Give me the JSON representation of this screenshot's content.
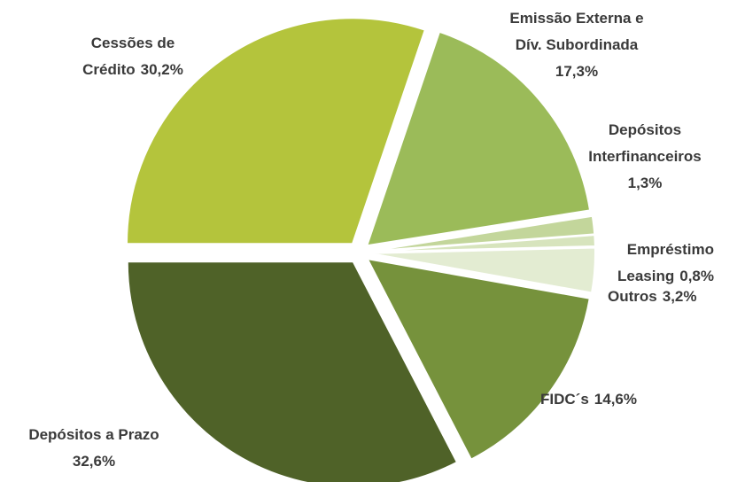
{
  "chart_data": {
    "type": "pie",
    "categories": [
      [
        "Cessões de",
        "Crédito"
      ],
      [
        "Emissão Externa e",
        "Dív. Subordinada"
      ],
      [
        "Depósitos",
        "Interfinanceiros"
      ],
      [
        "Empréstimo",
        "Leasing"
      ],
      [
        "Outros"
      ],
      [
        "FIDC´s"
      ],
      [
        "Depósitos a Prazo"
      ]
    ],
    "values": [
      30.2,
      17.3,
      1.3,
      0.8,
      3.2,
      14.6,
      32.6
    ],
    "value_labels": [
      "30,2%",
      "17,3%",
      "1,3%",
      "0,8%",
      "3,2%",
      "14,6%",
      "32,6%"
    ],
    "colors": [
      "#b4c43c",
      "#9bbb59",
      "#c3d69b",
      "#d7e4bd",
      "#e3ecd2",
      "#76923c",
      "#4f6228"
    ]
  }
}
